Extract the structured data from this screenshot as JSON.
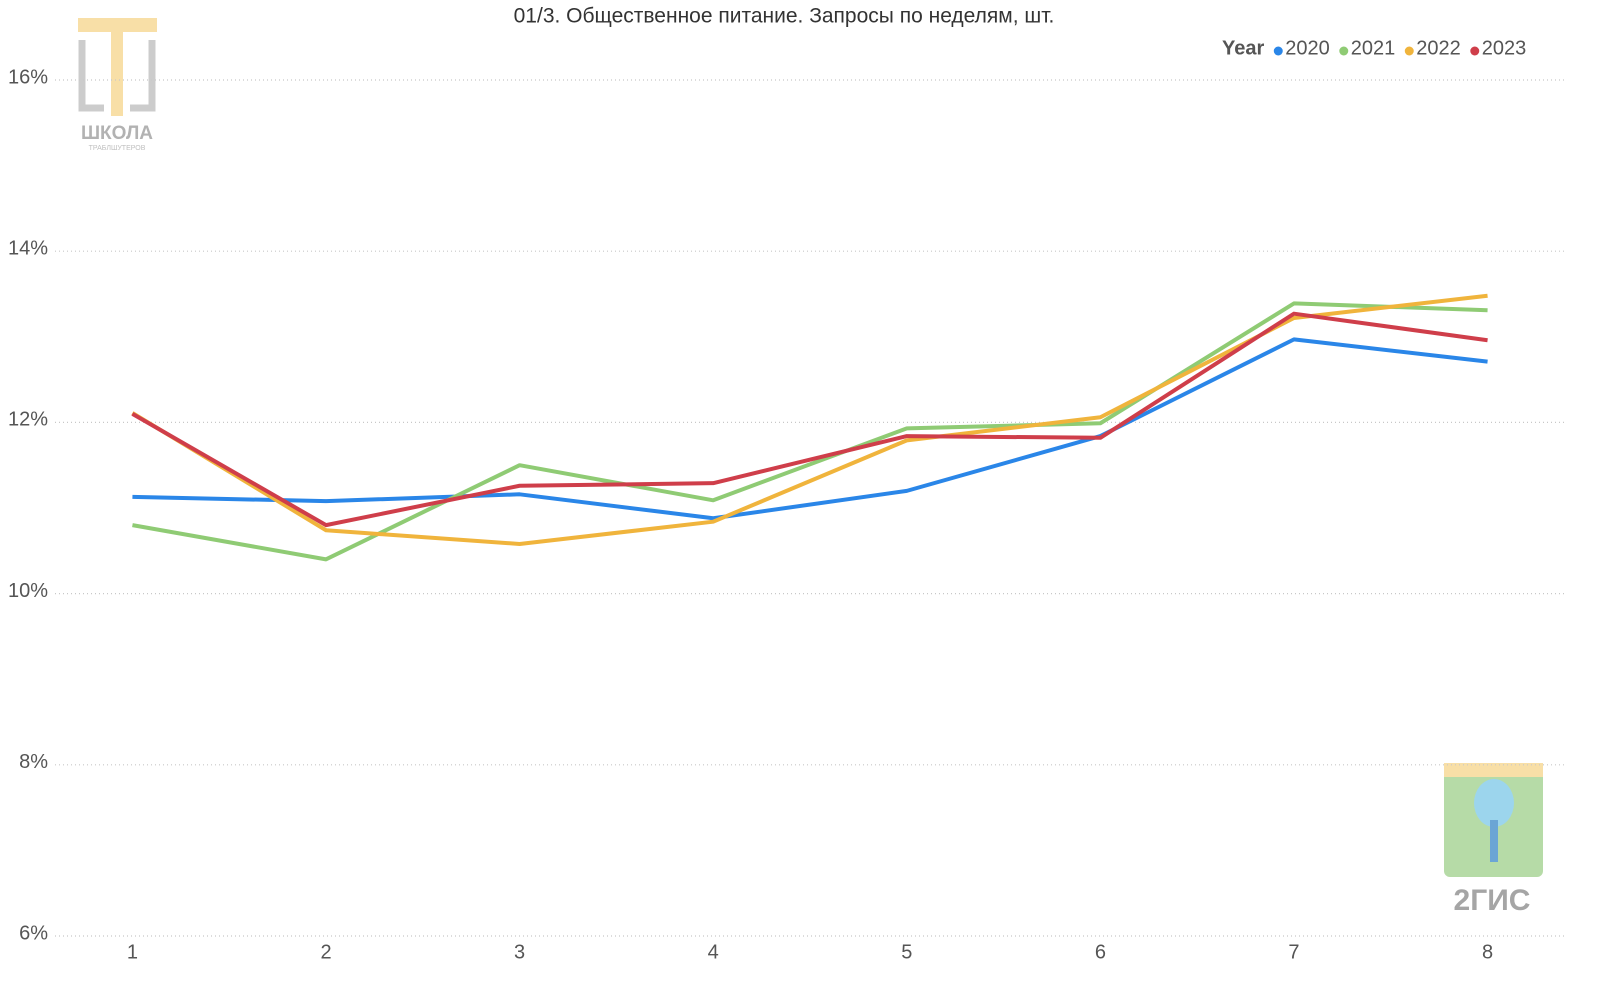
{
  "chart_data": {
    "type": "line",
    "title": "01/3. Общественное питание. Запросы по неделям, шт.",
    "legend_title": "Year",
    "legend_position": "top-right",
    "x": [
      1,
      2,
      3,
      4,
      5,
      6,
      7,
      8
    ],
    "xlim": [
      0.6,
      8.4
    ],
    "xticks": [
      1,
      2,
      3,
      4,
      5,
      6,
      7,
      8
    ],
    "ylim": [
      6,
      16
    ],
    "yticks": [
      {
        "value": 6,
        "label": "6%"
      },
      {
        "value": 8,
        "label": "8%"
      },
      {
        "value": 10,
        "label": "10%"
      },
      {
        "value": 12,
        "label": "12%"
      },
      {
        "value": 14,
        "label": "14%"
      },
      {
        "value": 16,
        "label": "16%"
      }
    ],
    "grid": true,
    "series": [
      {
        "name": "2020",
        "color": "#2a86e8",
        "values": [
          11.13,
          11.08,
          11.16,
          10.88,
          11.2,
          11.84,
          12.97,
          12.71
        ]
      },
      {
        "name": "2021",
        "color": "#8fcb74",
        "values": [
          10.8,
          10.4,
          11.5,
          11.09,
          11.93,
          11.99,
          13.39,
          13.31
        ]
      },
      {
        "name": "2022",
        "color": "#f0b43c",
        "values": [
          12.11,
          10.74,
          10.58,
          10.84,
          11.79,
          12.06,
          13.22,
          13.48
        ]
      },
      {
        "name": "2023",
        "color": "#cf3e4a",
        "values": [
          12.1,
          10.8,
          11.26,
          11.29,
          11.84,
          11.82,
          13.27,
          12.96
        ]
      }
    ]
  },
  "logos": {
    "school": "ШКОЛА",
    "school_sub": "ТРАБЛШУТЕРОВ",
    "gis": "2ГИС"
  }
}
